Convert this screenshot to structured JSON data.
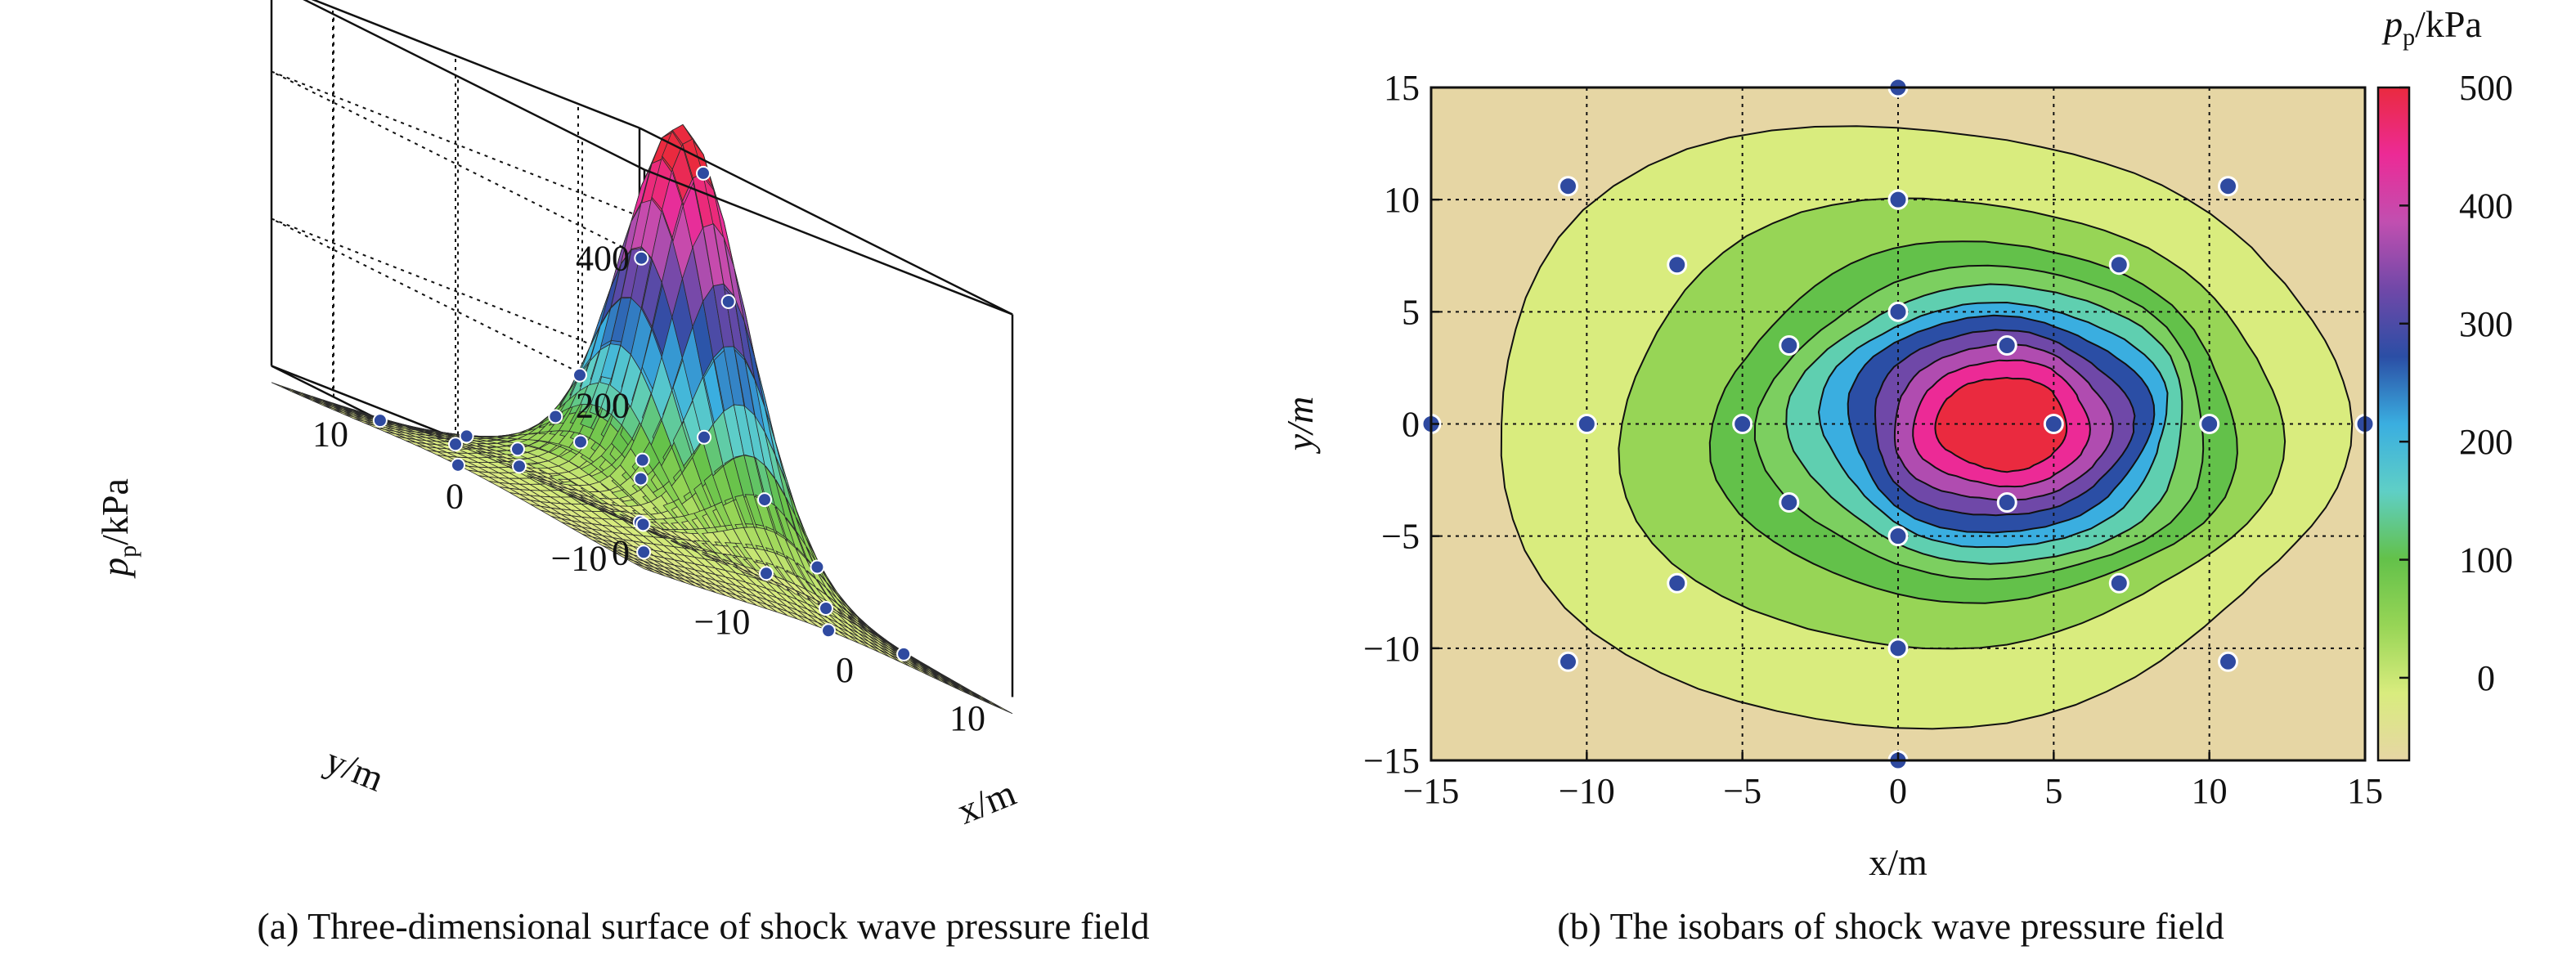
{
  "chart_data": [
    {
      "type": "surface",
      "caption": "(a) Three-dimensional surface of shock wave pressure field",
      "xlabel": "x/m",
      "ylabel": "y/m",
      "zlabel": "pp/kPa",
      "zlabel_main": "p",
      "zlabel_sub": "p",
      "zlabel_unit": "/kPa",
      "x_ticks": [
        "−10",
        "0",
        "10"
      ],
      "y_ticks": [
        "10",
        "0",
        "−10"
      ],
      "z_ticks": [
        "0",
        "200",
        "400"
      ],
      "xlim": [
        -15,
        15
      ],
      "ylim": [
        -15,
        15
      ],
      "zlim": [
        -50,
        520
      ],
      "peak": {
        "x": 3.5,
        "y": 0,
        "z": 500
      },
      "grid": true,
      "colormap": [
        "#e6d6a4",
        "#d9ec7e",
        "#97d556",
        "#63c14a",
        "#5fcfc6",
        "#3aaee0",
        "#2b4ea5",
        "#7048a8",
        "#c14fb0",
        "#ec2a96",
        "#ea2a3f"
      ],
      "points": [
        {
          "x": 0,
          "y": 15
        },
        {
          "x": 0,
          "y": -15
        },
        {
          "x": 15,
          "y": 0
        },
        {
          "x": -15,
          "y": 0
        },
        {
          "x": 0,
          "y": 10
        },
        {
          "x": 0,
          "y": -10
        },
        {
          "x": 10,
          "y": 0
        },
        {
          "x": -10,
          "y": 0
        },
        {
          "x": 0,
          "y": 5
        },
        {
          "x": 0,
          "y": -5
        },
        {
          "x": 5,
          "y": 0
        },
        {
          "x": -5,
          "y": 0
        },
        {
          "x": 10.6,
          "y": 10.6
        },
        {
          "x": -10.6,
          "y": 10.6
        },
        {
          "x": 10.6,
          "y": -10.6
        },
        {
          "x": -10.6,
          "y": -10.6
        },
        {
          "x": 7.1,
          "y": 7.1
        },
        {
          "x": -7.1,
          "y": 7.1
        },
        {
          "x": 7.1,
          "y": -7.1
        },
        {
          "x": -7.1,
          "y": -7.1
        },
        {
          "x": 3.5,
          "y": 3.5
        },
        {
          "x": -3.5,
          "y": 3.5
        },
        {
          "x": 3.5,
          "y": -3.5
        },
        {
          "x": -3.5,
          "y": -3.5
        }
      ]
    },
    {
      "type": "contour",
      "caption": "(b) The isobars of shock wave pressure field",
      "xlabel": "x/m",
      "ylabel": "y/m",
      "colorbar_label": "pp/kPa",
      "colorbar_main": "p",
      "colorbar_sub": "p",
      "colorbar_unit": "/kPa",
      "xlim": [
        -15,
        15
      ],
      "ylim": [
        -15,
        15
      ],
      "x_ticks": [
        -15,
        -10,
        -5,
        0,
        5,
        10,
        15
      ],
      "y_ticks": [
        -15,
        -10,
        -5,
        0,
        5,
        10,
        15
      ],
      "x_tick_labels": [
        "−15",
        "−10",
        "−5",
        "0",
        "5",
        "10",
        "15"
      ],
      "y_tick_labels": [
        "−15",
        "−10",
        "−5",
        "0",
        "5",
        "10",
        "15"
      ],
      "colorbar_range": [
        -70,
        500
      ],
      "colorbar_ticks": [
        0,
        100,
        200,
        300,
        400,
        500
      ],
      "colorbar_tick_labels": [
        "0",
        "100",
        "200",
        "300",
        "400",
        "500"
      ],
      "grid": "dotted",
      "peak": {
        "x": 3.5,
        "y": 0,
        "value": 500
      },
      "levels": [
        {
          "value": -20,
          "color": "#e6d6a4"
        },
        {
          "value": 0,
          "color": "#d9ec7e"
        },
        {
          "value": 30,
          "color": "#97d556"
        },
        {
          "value": 70,
          "color": "#63c14a"
        },
        {
          "value": 110,
          "color": "#7ccf60"
        },
        {
          "value": 150,
          "color": "#5fcfb0"
        },
        {
          "value": 200,
          "color": "#3aaee0"
        },
        {
          "value": 250,
          "color": "#2b4ea5"
        },
        {
          "value": 310,
          "color": "#6f48a8"
        },
        {
          "value": 370,
          "color": "#b04cb0"
        },
        {
          "value": 430,
          "color": "#ec2a96"
        },
        {
          "value": 490,
          "color": "#ea2a3f"
        }
      ],
      "colorbar_colors": [
        "#e6d6a4",
        "#d9ec7e",
        "#97d556",
        "#63c14a",
        "#5fcfc6",
        "#3aaee0",
        "#2b4ea5",
        "#7048a8",
        "#c14fb0",
        "#ec2a96",
        "#ea2a3f"
      ],
      "points": [
        {
          "x": 0,
          "y": 15
        },
        {
          "x": 0,
          "y": -15
        },
        {
          "x": 15,
          "y": 0
        },
        {
          "x": -15,
          "y": 0
        },
        {
          "x": 0,
          "y": 10
        },
        {
          "x": 0,
          "y": -10
        },
        {
          "x": 10,
          "y": 0
        },
        {
          "x": -10,
          "y": 0
        },
        {
          "x": 0,
          "y": 5
        },
        {
          "x": 0,
          "y": -5
        },
        {
          "x": 5,
          "y": 0
        },
        {
          "x": -5,
          "y": 0
        },
        {
          "x": 10.6,
          "y": 10.6
        },
        {
          "x": -10.6,
          "y": 10.6
        },
        {
          "x": 10.6,
          "y": -10.6
        },
        {
          "x": -10.6,
          "y": -10.6
        },
        {
          "x": 7.1,
          "y": 7.1
        },
        {
          "x": -7.1,
          "y": 7.1
        },
        {
          "x": 7.1,
          "y": -7.1
        },
        {
          "x": -7.1,
          "y": -7.1
        },
        {
          "x": 3.5,
          "y": 3.5
        },
        {
          "x": -3.5,
          "y": 3.5
        },
        {
          "x": 3.5,
          "y": -3.5
        },
        {
          "x": -3.5,
          "y": -3.5
        }
      ]
    }
  ]
}
